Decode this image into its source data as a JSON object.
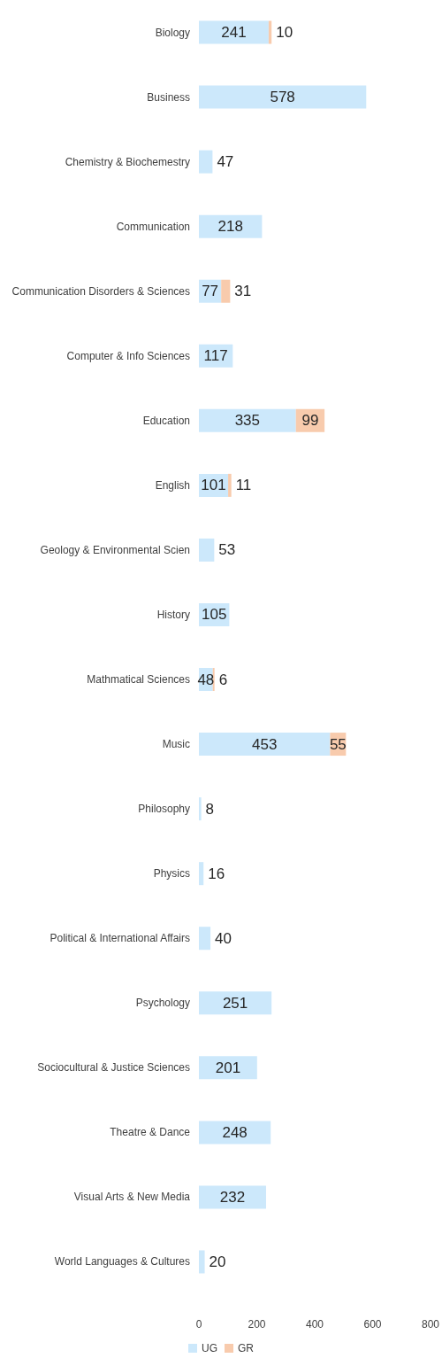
{
  "chart_data": {
    "type": "bar",
    "orientation": "horizontal",
    "stacked": true,
    "categories": [
      "Biology",
      "Business",
      "Chemistry & Biochemestry",
      "Communication",
      "Communication Disorders & Sciences",
      "Computer & Info Sciences",
      "Education",
      "English",
      "Geology & Environmental Scien",
      "History",
      "Mathmatical Sciences",
      "Music",
      "Philosophy",
      "Physics",
      "Political & International Affairs",
      "Psychology",
      "Sociocultural & Justice Sciences",
      "Theatre & Dance",
      "Visual Arts & New Media",
      "World Languages & Cultures"
    ],
    "series": [
      {
        "name": "UG",
        "color": "#cce8fb",
        "values": [
          241,
          578,
          47,
          218,
          77,
          117,
          335,
          101,
          53,
          105,
          48,
          453,
          8,
          16,
          40,
          251,
          201,
          248,
          232,
          20
        ]
      },
      {
        "name": "GR",
        "color": "#f8cbad",
        "values": [
          10,
          null,
          null,
          null,
          31,
          null,
          99,
          11,
          null,
          null,
          6,
          55,
          null,
          null,
          null,
          null,
          null,
          null,
          null,
          null
        ]
      }
    ],
    "xlim": [
      0,
      800
    ],
    "xticks": [
      0,
      200,
      400,
      600,
      800
    ],
    "grid": false,
    "legend": "bottom",
    "data_labels": true
  }
}
